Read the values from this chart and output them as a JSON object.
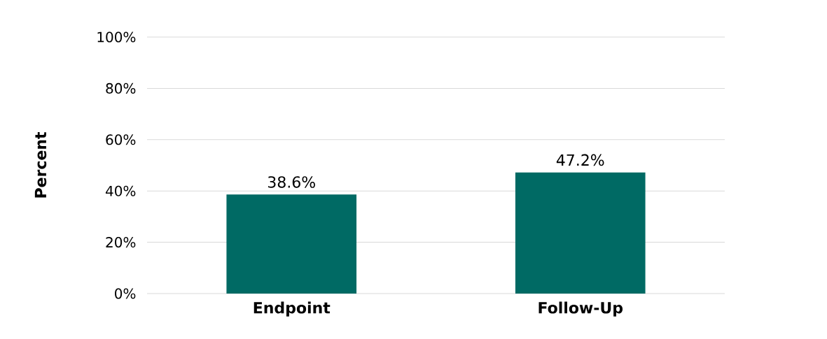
{
  "chart_data": {
    "type": "bar",
    "ylabel": "Percent",
    "categories": [
      "Endpoint",
      "Follow-Up"
    ],
    "values": [
      38.6,
      47.2
    ],
    "color": "#006a64",
    "value_labels": [
      "38.6%",
      "47.2%"
    ],
    "ylim": [
      0,
      100
    ],
    "yticks": [
      {
        "value": 0,
        "label": "0%"
      },
      {
        "value": 20,
        "label": "20%"
      },
      {
        "value": 40,
        "label": "40%"
      },
      {
        "value": 60,
        "label": "60%"
      },
      {
        "value": 80,
        "label": "80%"
      },
      {
        "value": 100,
        "label": "100%"
      }
    ],
    "grid": "y"
  }
}
